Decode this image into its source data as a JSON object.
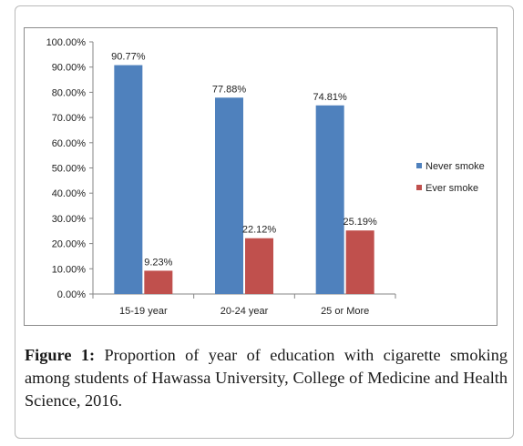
{
  "chart_data": {
    "type": "bar",
    "categories": [
      "15-19 year",
      "20-24 year",
      "25 or More"
    ],
    "series": [
      {
        "name": "Never smoke",
        "values": [
          90.77,
          77.88,
          74.81
        ],
        "color": "#4f81bd",
        "labels": [
          "90.77%",
          "77.88%",
          "74.81%"
        ]
      },
      {
        "name": "Ever smoke",
        "values": [
          9.23,
          22.12,
          25.19
        ],
        "color": "#c0504d",
        "labels": [
          "9.23%",
          "22.12%",
          "25.19%"
        ]
      }
    ],
    "ylim": [
      0,
      100
    ],
    "yticks": [
      0,
      10,
      20,
      30,
      40,
      50,
      60,
      70,
      80,
      90,
      100
    ],
    "ytick_labels": [
      "0.00%",
      "10.00%",
      "20.00%",
      "30.00%",
      "40.00%",
      "50.00%",
      "60.00%",
      "70.00%",
      "80.00%",
      "90.00%",
      "100.00%"
    ],
    "grid": false,
    "legend_position": "right"
  },
  "caption": {
    "label": "Figure 1:",
    "text": "Proportion of year of education with cigarette smoking among students of Hawassa University, College of Medicine and Health Science, 2016."
  }
}
